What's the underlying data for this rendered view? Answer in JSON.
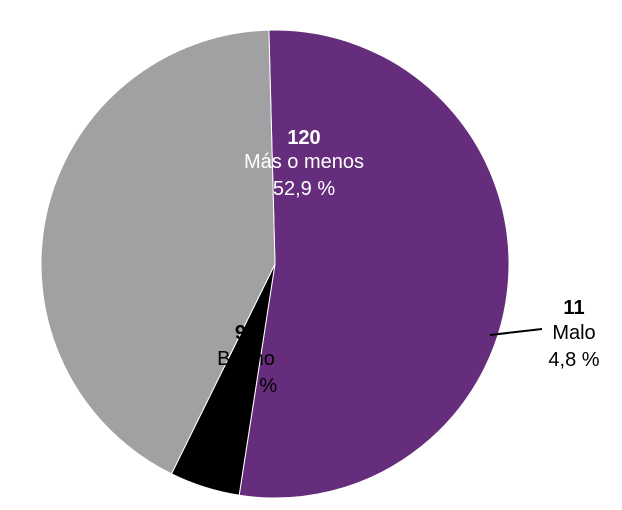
{
  "chart_data": {
    "type": "pie",
    "slices": [
      {
        "label": "Más o menos",
        "value": 120,
        "percent": "52,9 %",
        "color": "#652D7B",
        "text_color": "#ffffff"
      },
      {
        "label": "Malo",
        "value": 11,
        "percent": "4,8 %",
        "color": "#000000",
        "text_color": "#000000"
      },
      {
        "label": "Bueno",
        "value": 96,
        "percent": "42,3 %",
        "color": "#A1A1A4",
        "text_color": "#000000"
      }
    ],
    "total": 227,
    "start_angle_deg": 268.5,
    "direction": "clockwise",
    "legend": "none"
  }
}
